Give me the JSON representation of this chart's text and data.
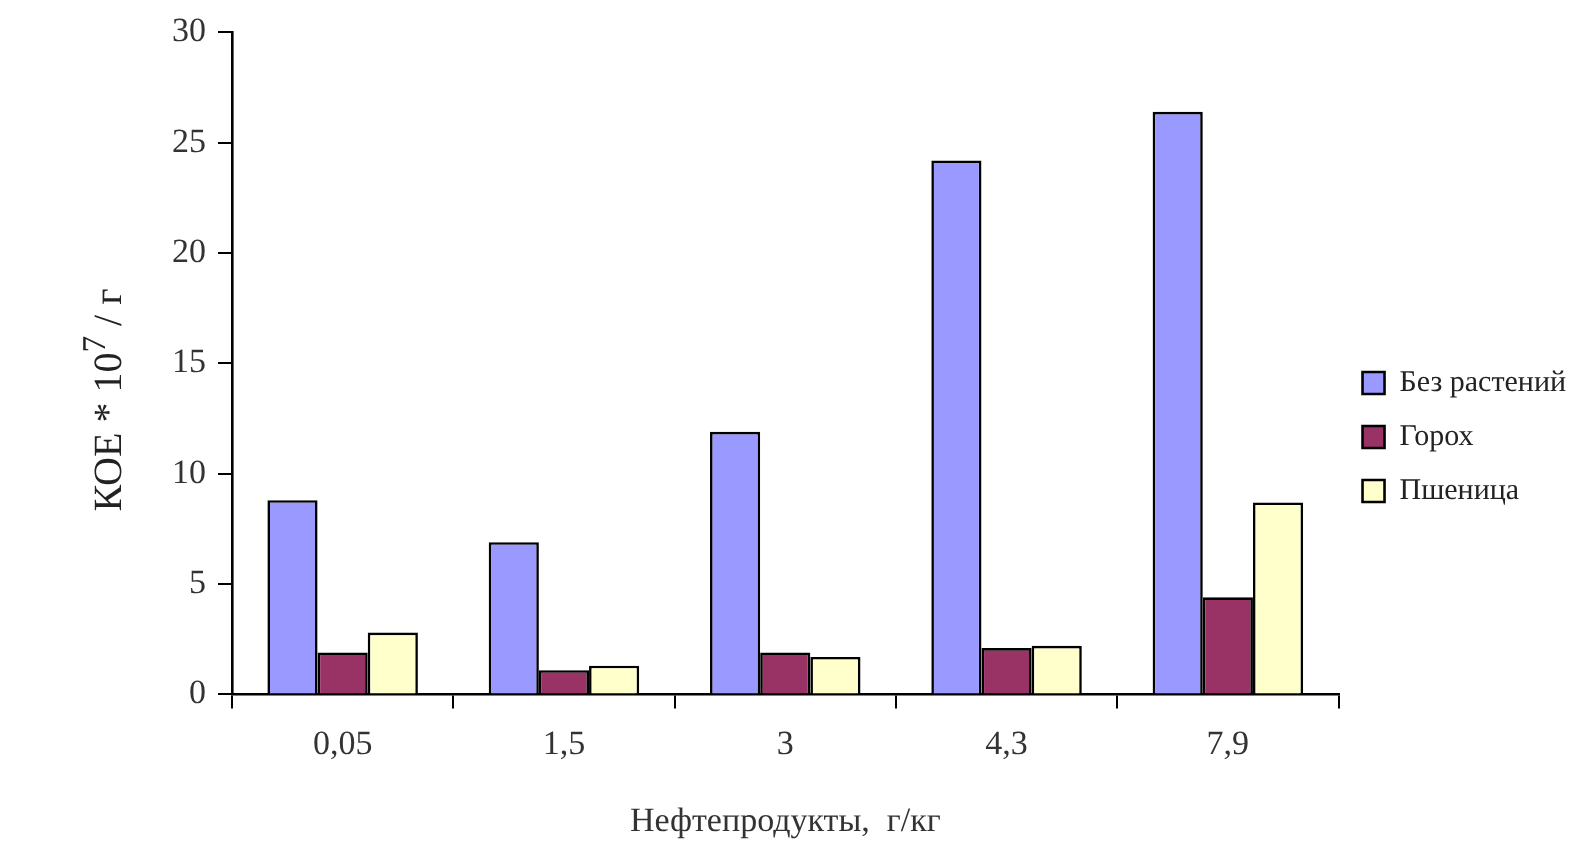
{
  "chart_data": {
    "type": "bar",
    "xlabel": "Нефтепродукты,  г/кг",
    "ylabel": "КОЕ * 10$^{7}$ / г",
    "categories": [
      "0,05",
      "1,5",
      "3",
      "4,3",
      "7,9"
    ],
    "series": [
      {
        "name": "Без растений",
        "color": "#9999ff",
        "values": [
          8.8,
          6.9,
          11.9,
          24.2,
          26.4
        ]
      },
      {
        "name": "Горох",
        "color": "#993366",
        "values": [
          1.9,
          1.1,
          1.9,
          2.1,
          4.4
        ]
      },
      {
        "name": "Пшеница",
        "color": "#ffffcc",
        "values": [
          2.8,
          1.3,
          1.7,
          2.2,
          8.7
        ]
      }
    ],
    "ylim": [
      0,
      30
    ],
    "yticks": [
      0,
      5,
      10,
      15,
      20,
      25,
      30
    ],
    "grid": false,
    "legend": "right"
  }
}
